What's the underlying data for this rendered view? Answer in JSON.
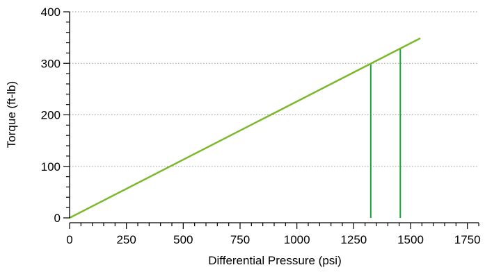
{
  "chart_data": {
    "type": "line",
    "title": "",
    "xlabel": "Differential Pressure (psi)",
    "ylabel": "Torque (ft-lb)",
    "xlim": [
      0,
      1800
    ],
    "ylim": [
      0,
      400
    ],
    "x_ticks": [
      0,
      250,
      500,
      750,
      1000,
      1250,
      1500,
      1750
    ],
    "x_tick_labels": [
      "0",
      "250",
      "500",
      "750",
      "1000",
      "1250",
      "1500",
      "1750"
    ],
    "y_ticks": [
      0,
      100,
      200,
      300,
      400
    ],
    "y_tick_labels": [
      "0",
      "100",
      "200",
      "300",
      "400"
    ],
    "x_minor_step": 50,
    "y_minor_step": 20,
    "grid": "horizontal dotted lines at major y ticks",
    "legend": "none",
    "series": [
      {
        "x": [
          0,
          1540
        ],
        "y": [
          0,
          348
        ],
        "color": "#7ab929"
      }
    ],
    "vertical_markers": [
      {
        "x": 1325,
        "y": 299,
        "color": "#1aa33a"
      },
      {
        "x": 1455,
        "y": 329,
        "color": "#1aa33a"
      }
    ]
  }
}
